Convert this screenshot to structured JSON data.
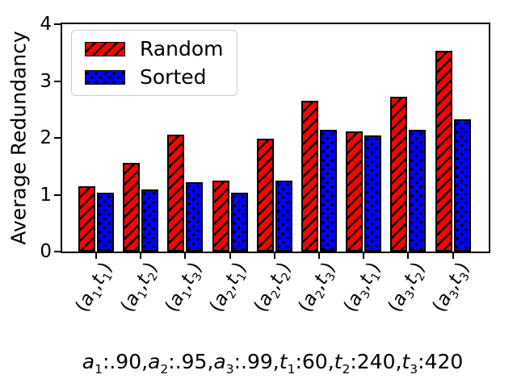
{
  "figure": {
    "background": "#ffffff"
  },
  "chart_data": {
    "type": "bar",
    "title": "",
    "xlabel": "",
    "ylabel": "Average Redundancy",
    "ylim": [
      0,
      4
    ],
    "yticks": [
      0,
      1,
      2,
      3,
      4
    ],
    "categories": [
      "(a_1,t_1)",
      "(a_1,t_2)",
      "(a_1,t_3)",
      "(a_2,t_1)",
      "(a_2,t_2)",
      "(a_2,t_3)",
      "(a_3,t_1)",
      "(a_3,t_2)",
      "(a_3,t_3)"
    ],
    "series": [
      {
        "name": "Random",
        "color": "#ff0000",
        "hatch": "diagonal",
        "values": [
          1.15,
          1.56,
          2.05,
          1.25,
          1.98,
          2.65,
          2.12,
          2.72,
          3.53
        ]
      },
      {
        "name": "Sorted",
        "color": "#0000ff",
        "hatch": "dots",
        "values": [
          1.03,
          1.09,
          1.22,
          1.04,
          1.25,
          2.14,
          2.04,
          2.14,
          2.33
        ]
      }
    ],
    "legend_position": "upper left",
    "grid": false,
    "bar_edge_color": "#000000",
    "x_tick_rotation_deg": 60,
    "caption": "a_1:.90,a_2:.95,a_3:.99,t_1:60,t_2:240,t_3:420"
  }
}
